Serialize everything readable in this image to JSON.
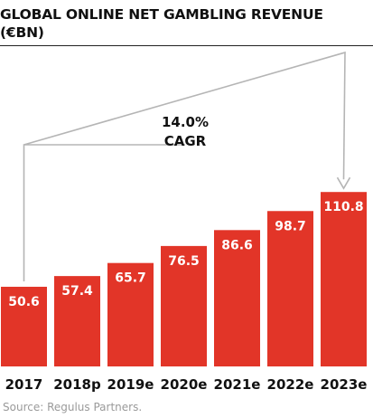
{
  "header": {
    "title_line1": "GLOBAL ONLINE NET GAMBLING REVENUE",
    "title_line2": "(€BN)"
  },
  "annotation": {
    "cagr_value": "14.0%",
    "cagr_label": "CAGR"
  },
  "footer": {
    "source": "Source: Regulus Partners."
  },
  "colors": {
    "bar": "#e23528",
    "bar_label": "#ffffff",
    "text": "#111111",
    "bracket": "#b5b5b5",
    "source": "#9a9a9a"
  },
  "chart_data": {
    "type": "bar",
    "title": "GLOBAL ONLINE NET GAMBLING REVENUE (€BN)",
    "categories": [
      "2017",
      "2018p",
      "2019e",
      "2020e",
      "2021e",
      "2022e",
      "2023e"
    ],
    "values": [
      50.6,
      57.4,
      65.7,
      76.5,
      86.6,
      98.7,
      110.8
    ],
    "value_labels": [
      "50.6",
      "57.4",
      "65.7",
      "76.5",
      "86.6",
      "98.7",
      "110.8"
    ],
    "xlabel": "",
    "ylabel": "",
    "ylim": [
      0,
      120
    ],
    "grid": false,
    "legend": "none",
    "annotations": [
      "14.0% CAGR"
    ]
  }
}
